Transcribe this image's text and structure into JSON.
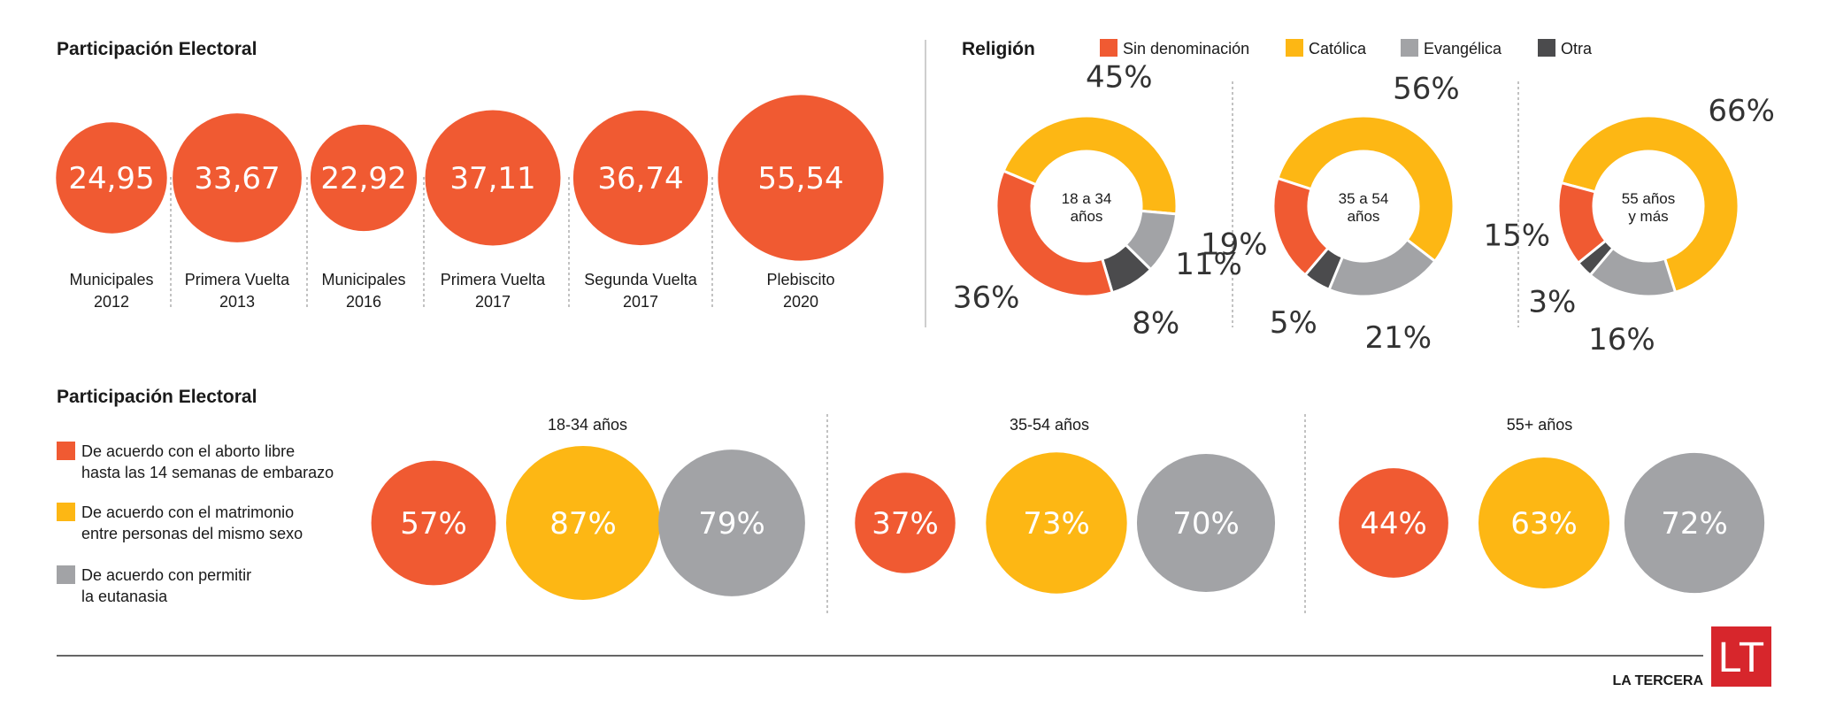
{
  "colors": {
    "orange": "#F05A32",
    "yellow": "#FDB714",
    "gray": "#A2A3A6",
    "dark": "#4B4B4D",
    "brand_red": "#D7262C"
  },
  "chart_data": [
    {
      "type": "bubble",
      "title": "Participación Electoral",
      "categories": [
        [
          "Municipales",
          "2012"
        ],
        [
          "Primera Vuelta",
          "2013"
        ],
        [
          "Municipales",
          "2016"
        ],
        [
          "Primera Vuelta",
          "2017"
        ],
        [
          "Segunda Vuelta",
          "2017"
        ],
        [
          "Plebiscito",
          "2020"
        ]
      ],
      "values": [
        24.95,
        33.67,
        22.92,
        37.11,
        36.74,
        55.54
      ],
      "value_labels": [
        "24,95",
        "33,67",
        "22,92",
        "37,11",
        "36,74",
        "55,54"
      ]
    },
    {
      "type": "donut",
      "title": "Religión",
      "legend": [
        "Sin denominación",
        "Católica",
        "Evangélica",
        "Otra"
      ],
      "legend_position": "top",
      "groups": [
        {
          "label": [
            "18 a 34",
            "años"
          ],
          "values": [
            36,
            45,
            11,
            8
          ]
        },
        {
          "label": [
            "35 a 54",
            "años"
          ],
          "values": [
            19,
            56,
            21,
            5
          ]
        },
        {
          "label": [
            "55 años",
            "y más"
          ],
          "values": [
            15,
            66,
            16,
            3
          ]
        }
      ]
    },
    {
      "type": "bubble",
      "title": "Participación Electoral",
      "legend": [
        [
          "De acuerdo con el aborto libre",
          "hasta las 14 semanas de embarazo"
        ],
        [
          "De acuerdo con el matrimonio",
          "entre personas del mismo sexo"
        ],
        [
          "De acuerdo con permitir",
          "la eutanasia"
        ]
      ],
      "groups": [
        {
          "label": "18-34 años",
          "values": [
            57,
            87,
            79
          ]
        },
        {
          "label": "35-54 años",
          "values": [
            37,
            73,
            70
          ]
        },
        {
          "label": "55+ años",
          "values": [
            44,
            63,
            72
          ]
        }
      ]
    }
  ],
  "brand": {
    "name": "LA TERCERA",
    "logo_text": "LT"
  }
}
